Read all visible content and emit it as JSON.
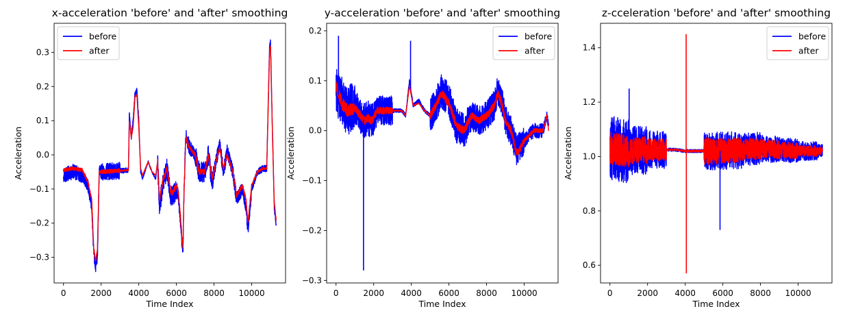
{
  "chart_data": [
    {
      "type": "line",
      "title": "x-acceleration 'before' and 'after' smoothing",
      "xlabel": "Time Index",
      "ylabel": "Acceleration",
      "xlim": [
        -500,
        11800
      ],
      "ylim": [
        -0.375,
        0.385
      ],
      "xticks": [
        0,
        2000,
        4000,
        6000,
        8000,
        10000
      ],
      "xtick_labels": [
        "0",
        "2000",
        "4000",
        "6000",
        "8000",
        "10000"
      ],
      "yticks": [
        -0.3,
        -0.2,
        -0.1,
        0.0,
        0.1,
        0.2,
        0.3
      ],
      "ytick_labels": [
        "−0.3",
        "−0.2",
        "−0.1",
        "0.0",
        "0.1",
        "0.2",
        "0.3"
      ],
      "legend": "top-left",
      "grid": false,
      "series": [
        {
          "name": "before",
          "color": "#0000ff",
          "noise": [
            0.022,
            0.018,
            0.025,
            0.008,
            0.003,
            0.03,
            0.022,
            0.03,
            0.02,
            0.02,
            0.01,
            0.015
          ],
          "x": [
            0,
            500,
            1000,
            1300,
            1500,
            1600,
            1700,
            1800,
            1900,
            3450,
            3500,
            3600,
            3700,
            3800,
            3900,
            4000,
            4100,
            4200,
            4500,
            4700,
            4900,
            5000,
            5100,
            5300,
            5500,
            5700,
            5800,
            6000,
            6100,
            6200,
            6300,
            6350,
            6400,
            6500,
            6700,
            7000,
            7200,
            7500,
            7700,
            7900,
            8100,
            8300,
            8500,
            8700,
            9000,
            9200,
            9300,
            9500,
            9700,
            9800,
            10000,
            10300,
            10600,
            10800,
            10950,
            11000,
            11100,
            11200,
            11300
          ],
          "y": [
            -0.06,
            -0.05,
            -0.06,
            -0.09,
            -0.15,
            -0.28,
            -0.33,
            -0.3,
            -0.05,
            -0.045,
            0.12,
            0.05,
            0.1,
            0.18,
            0.19,
            0.1,
            -0.05,
            -0.07,
            -0.02,
            -0.05,
            -0.07,
            -0.02,
            -0.15,
            -0.08,
            -0.04,
            -0.12,
            -0.12,
            -0.1,
            -0.12,
            -0.18,
            -0.26,
            -0.28,
            -0.12,
            0.06,
            0.02,
            0.0,
            -0.05,
            -0.05,
            0.0,
            -0.08,
            -0.02,
            0.03,
            -0.05,
            0.01,
            -0.05,
            -0.13,
            -0.12,
            -0.1,
            -0.15,
            -0.22,
            -0.1,
            -0.05,
            -0.04,
            -0.04,
            0.32,
            0.33,
            0.08,
            -0.15,
            -0.2
          ]
        },
        {
          "name": "after",
          "color": "#ff0000",
          "noise": [
            0.005,
            0.004,
            0.006,
            0.002,
            0.001,
            0.008,
            0.006,
            0.008,
            0.005,
            0.005,
            0.003,
            0.004
          ],
          "x": [
            0,
            500,
            1000,
            1300,
            1500,
            1600,
            1700,
            1800,
            1900,
            3450,
            3500,
            3600,
            3700,
            3800,
            3900,
            4000,
            4100,
            4200,
            4500,
            4700,
            4900,
            5000,
            5100,
            5300,
            5500,
            5700,
            5800,
            6000,
            6100,
            6200,
            6300,
            6350,
            6400,
            6500,
            6700,
            7000,
            7200,
            7500,
            7700,
            7900,
            8100,
            8300,
            8500,
            8700,
            9000,
            9200,
            9300,
            9500,
            9700,
            9800,
            10000,
            10300,
            10600,
            10800,
            10950,
            11000,
            11100,
            11200,
            11300
          ],
          "y": [
            -0.045,
            -0.04,
            -0.045,
            -0.08,
            -0.13,
            -0.27,
            -0.31,
            -0.28,
            -0.05,
            -0.045,
            0.1,
            0.05,
            0.08,
            0.17,
            0.175,
            0.08,
            -0.04,
            -0.06,
            -0.02,
            -0.05,
            -0.06,
            -0.02,
            -0.13,
            -0.07,
            -0.04,
            -0.11,
            -0.11,
            -0.09,
            -0.11,
            -0.17,
            -0.25,
            -0.27,
            -0.12,
            0.05,
            0.02,
            0.0,
            -0.05,
            -0.05,
            0.0,
            -0.07,
            -0.02,
            0.02,
            -0.04,
            0.0,
            -0.05,
            -0.12,
            -0.11,
            -0.09,
            -0.13,
            -0.2,
            -0.09,
            -0.05,
            -0.04,
            -0.04,
            0.3,
            0.32,
            0.07,
            -0.14,
            -0.19
          ]
        }
      ]
    },
    {
      "type": "line",
      "title": "y-acceleration 'before' and 'after' smoothing",
      "xlabel": "Time Index",
      "ylabel": "Acceleration",
      "xlim": [
        -500,
        11800
      ],
      "ylim": [
        -0.305,
        0.215
      ],
      "xticks": [
        0,
        2000,
        4000,
        6000,
        8000,
        10000
      ],
      "xtick_labels": [
        "0",
        "2000",
        "4000",
        "6000",
        "8000",
        "10000"
      ],
      "yticks": [
        -0.3,
        -0.2,
        -0.1,
        0.0,
        0.1,
        0.2
      ],
      "ytick_labels": [
        "−0.3",
        "−0.2",
        "−0.1",
        "0.0",
        "0.1",
        "0.2"
      ],
      "legend": "top-right",
      "grid": false,
      "series": [
        {
          "name": "before",
          "color": "#0000ff",
          "noise": [
            0.05,
            0.035,
            0.03,
            0.004,
            0.004,
            0.035,
            0.035,
            0.03,
            0.03,
            0.03,
            0.015,
            0.01
          ],
          "x": [
            0,
            300,
            600,
            1000,
            1300,
            1500,
            1700,
            1900,
            2200,
            3500,
            3700,
            3900,
            4100,
            4400,
            4700,
            5000,
            5300,
            5600,
            5800,
            6000,
            6400,
            6800,
            7200,
            7600,
            8000,
            8400,
            8600,
            8800,
            9000,
            9300,
            9600,
            9800,
            10000,
            10500,
            11000,
            11200,
            11300
          ],
          "y": [
            0.08,
            0.06,
            0.04,
            0.05,
            0.03,
            0.02,
            0.025,
            0.02,
            0.04,
            0.04,
            0.03,
            0.1,
            0.05,
            0.06,
            0.04,
            0.03,
            0.05,
            0.08,
            0.07,
            0.06,
            0.01,
            0.0,
            0.03,
            0.02,
            0.03,
            0.05,
            0.08,
            0.06,
            0.02,
            0.0,
            -0.04,
            -0.03,
            -0.02,
            0.0,
            0.0,
            0.03,
            0.01
          ]
        },
        {
          "name": "after",
          "color": "#ff0000",
          "noise": [
            0.012,
            0.008,
            0.007,
            0.001,
            0.001,
            0.008,
            0.008,
            0.007,
            0.007,
            0.007,
            0.004,
            0.003
          ],
          "x": [
            0,
            300,
            600,
            1000,
            1300,
            1500,
            1700,
            1900,
            2200,
            3500,
            3700,
            3900,
            4100,
            4400,
            4700,
            5000,
            5300,
            5600,
            5800,
            6000,
            6400,
            6800,
            7200,
            7600,
            8000,
            8400,
            8600,
            8800,
            9000,
            9300,
            9600,
            9800,
            10000,
            10500,
            11000,
            11200,
            11300
          ],
          "y": [
            0.09,
            0.055,
            0.04,
            0.045,
            0.03,
            0.02,
            0.025,
            0.02,
            0.04,
            0.04,
            0.03,
            0.09,
            0.05,
            0.055,
            0.04,
            0.03,
            0.05,
            0.075,
            0.065,
            0.055,
            0.01,
            0.0,
            0.03,
            0.02,
            0.03,
            0.05,
            0.075,
            0.055,
            0.02,
            0.0,
            -0.045,
            -0.035,
            -0.02,
            0.0,
            0.0,
            0.03,
            0.0
          ]
        }
      ]
    },
    {
      "type": "line",
      "title": "z-cceleration 'before' and 'after' smoothing",
      "xlabel": "Time Index",
      "ylabel": "Acceleration",
      "xlim": [
        -500,
        11800
      ],
      "ylim": [
        0.535,
        1.49
      ],
      "xticks": [
        0,
        2000,
        4000,
        6000,
        8000,
        10000
      ],
      "xtick_labels": [
        "0",
        "2000",
        "4000",
        "6000",
        "8000",
        "10000"
      ],
      "yticks": [
        0.6,
        0.8,
        1.0,
        1.2,
        1.4
      ],
      "ytick_labels": [
        "0.6",
        "0.8",
        "1.0",
        "1.2",
        "1.4"
      ],
      "legend": "top-right",
      "grid": false,
      "series": [
        {
          "name": "before",
          "color": "#0000ff",
          "noise": [
            0.12,
            0.09,
            0.07,
            0.006,
            0.006,
            0.07,
            0.07,
            0.06,
            0.05,
            0.045,
            0.035,
            0.025
          ],
          "x": [
            0,
            1000,
            2000,
            3500,
            4000,
            6000,
            8000,
            10000,
            11300
          ],
          "y": [
            1.03,
            1.02,
            1.025,
            1.025,
            1.02,
            1.02,
            1.03,
            1.02,
            1.02
          ]
        },
        {
          "name": "after",
          "color": "#ff0000",
          "noise": [
            0.06,
            0.05,
            0.04,
            0.003,
            0.004,
            0.05,
            0.045,
            0.04,
            0.035,
            0.03,
            0.02,
            0.015
          ],
          "x": [
            0,
            1000,
            2000,
            3500,
            4000,
            6000,
            8000,
            10000,
            11300
          ],
          "y": [
            1.03,
            1.02,
            1.025,
            1.025,
            1.02,
            1.02,
            1.03,
            1.02,
            1.02
          ]
        }
      ]
    }
  ]
}
